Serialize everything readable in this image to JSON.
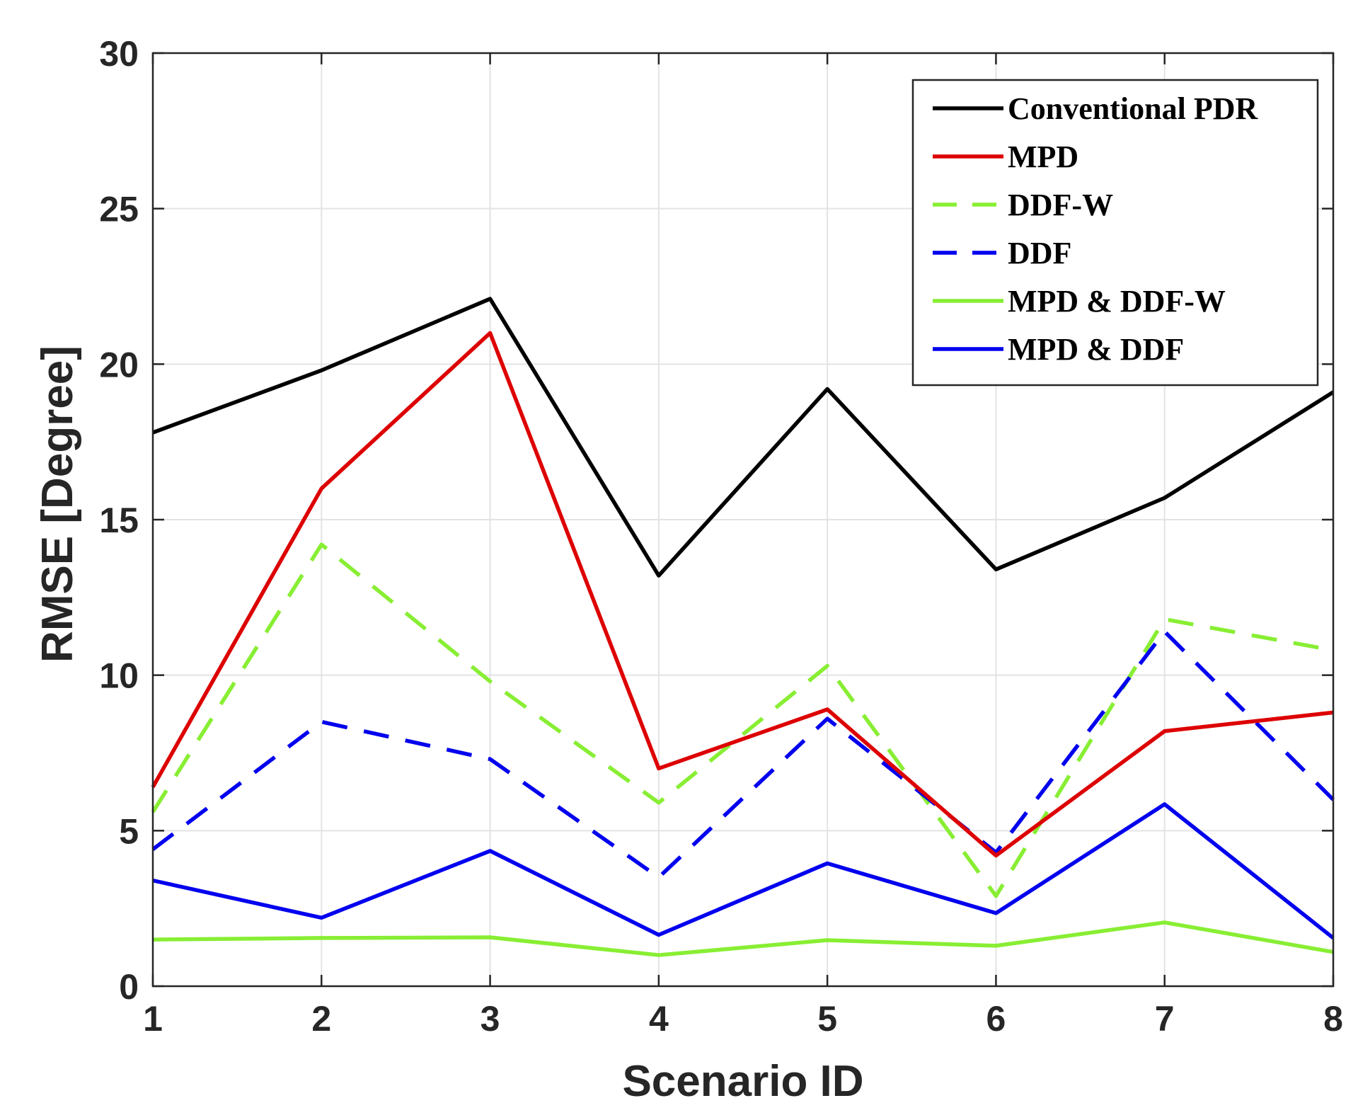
{
  "chart_data": {
    "type": "line",
    "title": "",
    "xlabel": "Scenario ID",
    "ylabel": "RMSE [Degree]",
    "x": [
      1,
      2,
      3,
      4,
      5,
      6,
      7,
      8
    ],
    "x_tick_labels": [
      "1",
      "2",
      "3",
      "4",
      "5",
      "6",
      "7",
      "8"
    ],
    "xlim": [
      1,
      8
    ],
    "ylim": [
      0,
      30
    ],
    "y_ticks": [
      0,
      5,
      10,
      15,
      20,
      25,
      30
    ],
    "y_tick_labels": [
      "0",
      "5",
      "10",
      "15",
      "20",
      "25",
      "30"
    ],
    "grid": true,
    "legend_position": "top-right",
    "series": [
      {
        "name": "Conventional PDR",
        "color": "#000000",
        "style": "solid",
        "values": [
          17.8,
          19.8,
          22.1,
          13.2,
          19.2,
          13.4,
          15.7,
          19.1
        ]
      },
      {
        "name": "MPD",
        "color": "#dd0000",
        "style": "solid",
        "values": [
          6.4,
          16.0,
          21.0,
          7.0,
          8.9,
          4.2,
          8.2,
          8.8
        ]
      },
      {
        "name": "DDF-W",
        "color": "#88ee33",
        "style": "dashed",
        "values": [
          5.6,
          14.2,
          9.8,
          5.9,
          10.3,
          2.9,
          11.8,
          10.8
        ]
      },
      {
        "name": "DDF",
        "color": "#0000ee",
        "style": "dashed",
        "values": [
          4.4,
          8.5,
          7.3,
          3.5,
          8.6,
          4.3,
          11.4,
          6.0
        ]
      },
      {
        "name": "MPD & DDF-W",
        "color": "#88ee33",
        "style": "solid",
        "values": [
          1.5,
          1.55,
          1.57,
          1.0,
          1.48,
          1.3,
          2.05,
          1.1
        ]
      },
      {
        "name": "MPD & DDF",
        "color": "#0000ee",
        "style": "solid",
        "values": [
          3.4,
          2.2,
          4.35,
          1.65,
          3.95,
          2.35,
          5.85,
          1.55
        ]
      }
    ]
  }
}
